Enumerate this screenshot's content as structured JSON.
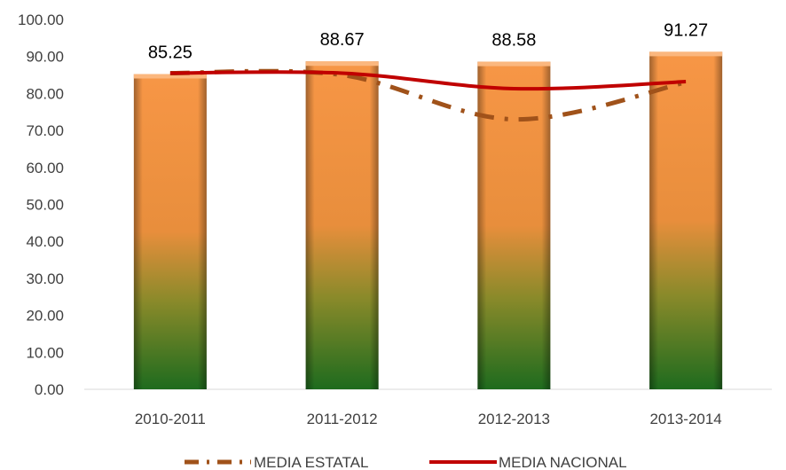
{
  "chart_data": {
    "type": "bar",
    "categories": [
      "2010-2011",
      "2011-2012",
      "2012-2013",
      "2013-2014"
    ],
    "values": [
      85.25,
      88.67,
      88.58,
      91.27
    ],
    "data_labels": [
      "85.25",
      "88.67",
      "88.58",
      "91.27"
    ],
    "ylim": [
      0,
      100
    ],
    "yticks": [
      "0.00",
      "10.00",
      "20.00",
      "30.00",
      "40.00",
      "50.00",
      "60.00",
      "70.00",
      "80.00",
      "90.00",
      "100.00"
    ],
    "grid": false,
    "legend_position": "bottom",
    "series": [
      {
        "name": "MEDIA ESTATAL",
        "type": "line",
        "style": "dash-dot",
        "color": "#A0521A",
        "values": [
          85.5,
          85.0,
          73.0,
          83.0
        ]
      },
      {
        "name": "MEDIA NACIONAL",
        "type": "line",
        "style": "solid",
        "color": "#C00000",
        "values": [
          85.5,
          85.5,
          81.3,
          83.2
        ]
      }
    ],
    "bar_colors": {
      "top": "#F79646",
      "bottom": "#1E6B1E"
    }
  }
}
